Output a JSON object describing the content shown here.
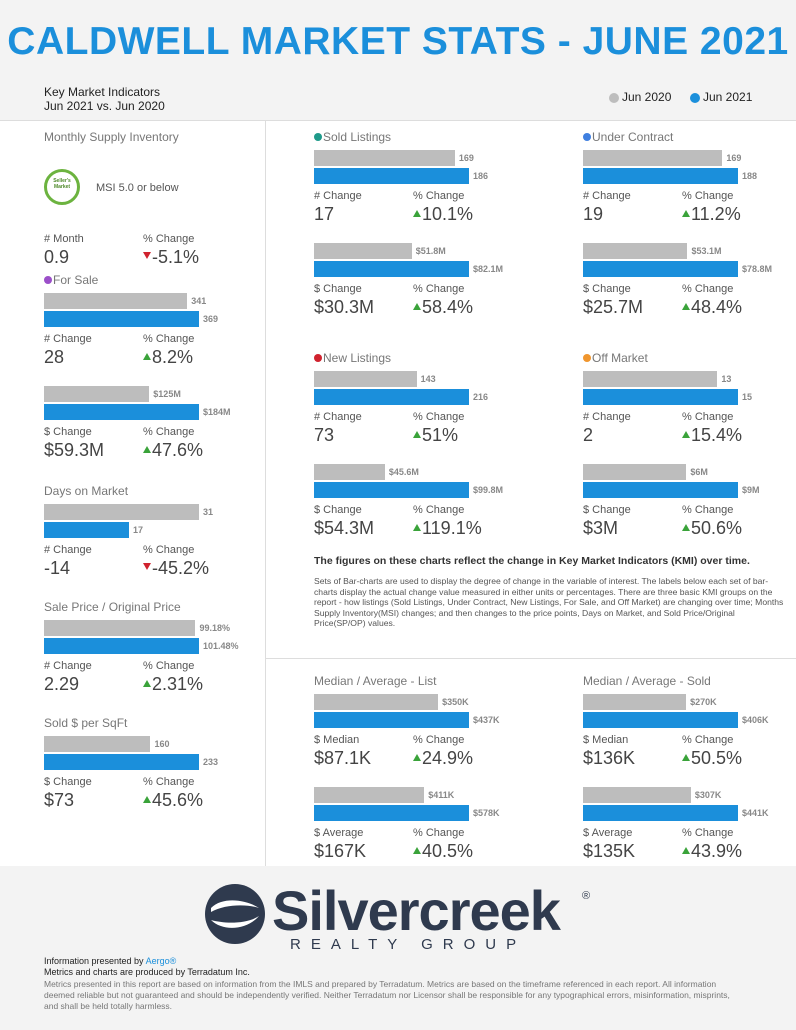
{
  "header": {
    "title": "CALDWELL MARKET STATS - JUNE 2021",
    "subtitle": "Key Market Indicators",
    "period": "Jun 2021 vs. Jun 2020",
    "legend": [
      {
        "name": "Jun 2020",
        "color": "#bdbdbd"
      },
      {
        "name": "Jun 2021",
        "color": "#1b8fdb"
      }
    ]
  },
  "msi": {
    "title": "Monthly Supply Inventory",
    "badge": "Seller's Market",
    "note": "MSI 5.0 or below",
    "stats": [
      {
        "label": "# Month",
        "value": "0.9"
      },
      {
        "label": "% Change",
        "value": "-5.1%",
        "trend": "down"
      }
    ]
  },
  "panels": [
    {
      "title": "For Sale",
      "dot": "#9b4fc9",
      "groups": [
        {
          "values": [
            341,
            369
          ],
          "stats": [
            {
              "label": "# Change",
              "value": "28"
            },
            {
              "label": "% Change",
              "value": "8.2%",
              "trend": "up"
            }
          ]
        },
        {
          "values": [
            125,
            184
          ],
          "value_labels": [
            "$125M",
            "$184M"
          ],
          "stats": [
            {
              "label": "$ Change",
              "value": "$59.3M"
            },
            {
              "label": "% Change",
              "value": "47.6%",
              "trend": "up"
            }
          ]
        }
      ]
    },
    {
      "title": "Days on Market",
      "groups": [
        {
          "values": [
            31,
            17
          ],
          "stats": [
            {
              "label": "# Change",
              "value": "-14"
            },
            {
              "label": "% Change",
              "value": "-45.2%",
              "trend": "down"
            }
          ]
        }
      ]
    },
    {
      "title": "Sale Price / Original Price",
      "groups": [
        {
          "values": [
            99.18,
            101.48
          ],
          "value_labels": [
            "99.18%",
            "101.48%"
          ],
          "stats": [
            {
              "label": "# Change",
              "value": "2.29"
            },
            {
              "label": "% Change",
              "value": "2.31%",
              "trend": "up"
            }
          ]
        }
      ]
    },
    {
      "title": "Sold $ per SqFt",
      "groups": [
        {
          "values": [
            160,
            233
          ],
          "stats": [
            {
              "label": "$ Change",
              "value": "$73"
            },
            {
              "label": "% Change",
              "value": "45.6%",
              "trend": "up"
            }
          ]
        }
      ]
    },
    {
      "title": "Sold Listings",
      "dot": "#1f9a8a",
      "groups": [
        {
          "values": [
            169,
            186
          ],
          "stats": [
            {
              "label": "# Change",
              "value": "17"
            },
            {
              "label": "% Change",
              "value": "10.1%",
              "trend": "up"
            }
          ]
        },
        {
          "values": [
            51.8,
            82.1
          ],
          "value_labels": [
            "$51.8M",
            "$82.1M"
          ],
          "stats": [
            {
              "label": "$ Change",
              "value": "$30.3M"
            },
            {
              "label": "% Change",
              "value": "58.4%",
              "trend": "up"
            }
          ]
        }
      ]
    },
    {
      "title": "Under Contract",
      "dot": "#3f7fe0",
      "groups": [
        {
          "values": [
            169,
            188
          ],
          "stats": [
            {
              "label": "# Change",
              "value": "19"
            },
            {
              "label": "% Change",
              "value": "11.2%",
              "trend": "up"
            }
          ]
        },
        {
          "values": [
            53.1,
            78.8
          ],
          "value_labels": [
            "$53.1M",
            "$78.8M"
          ],
          "stats": [
            {
              "label": "$ Change",
              "value": "$25.7M"
            },
            {
              "label": "% Change",
              "value": "48.4%",
              "trend": "up"
            }
          ]
        }
      ]
    },
    {
      "title": "New Listings",
      "dot": "#d0222e",
      "groups": [
        {
          "values": [
            143,
            216
          ],
          "stats": [
            {
              "label": "# Change",
              "value": "73"
            },
            {
              "label": "% Change",
              "value": "51%",
              "trend": "up"
            }
          ]
        },
        {
          "values": [
            45.6,
            99.8
          ],
          "value_labels": [
            "$45.6M",
            "$99.8M"
          ],
          "stats": [
            {
              "label": "$ Change",
              "value": "$54.3M"
            },
            {
              "label": "% Change",
              "value": "119.1%",
              "trend": "up"
            }
          ]
        }
      ]
    },
    {
      "title": "Off Market",
      "dot": "#f0962e",
      "groups": [
        {
          "values": [
            13,
            15
          ],
          "stats": [
            {
              "label": "# Change",
              "value": "2"
            },
            {
              "label": "% Change",
              "value": "15.4%",
              "trend": "up"
            }
          ]
        },
        {
          "values": [
            6,
            9
          ],
          "value_labels": [
            "$6M",
            "$9M"
          ],
          "stats": [
            {
              "label": "$ Change",
              "value": "$3M"
            },
            {
              "label": "% Change",
              "value": "50.6%",
              "trend": "up"
            }
          ]
        }
      ]
    },
    {
      "title": "Median / Average - List",
      "groups": [
        {
          "values": [
            350,
            437
          ],
          "value_labels": [
            "$350K",
            "$437K"
          ],
          "stats": [
            {
              "label": "$ Median",
              "value": "$87.1K"
            },
            {
              "label": "% Change",
              "value": "24.9%",
              "trend": "up"
            }
          ]
        },
        {
          "values": [
            411,
            578
          ],
          "value_labels": [
            "$411K",
            "$578K"
          ],
          "stats": [
            {
              "label": "$ Average",
              "value": "$167K"
            },
            {
              "label": "% Change",
              "value": "40.5%",
              "trend": "up"
            }
          ]
        }
      ]
    },
    {
      "title": "Median / Average - Sold",
      "groups": [
        {
          "values": [
            270,
            406
          ],
          "value_labels": [
            "$270K",
            "$406K"
          ],
          "stats": [
            {
              "label": "$ Median",
              "value": "$136K"
            },
            {
              "label": "% Change",
              "value": "50.5%",
              "trend": "up"
            }
          ]
        },
        {
          "values": [
            307,
            441
          ],
          "value_labels": [
            "$307K",
            "$441K"
          ],
          "stats": [
            {
              "label": "$ Average",
              "value": "$135K"
            },
            {
              "label": "% Change",
              "value": "43.9%",
              "trend": "up"
            }
          ]
        }
      ]
    }
  ],
  "description": {
    "headline": "The figures on these charts reflect the change in Key Market Indicators (KMI) over time.",
    "body": "Sets of Bar-charts are used to display the degree of change in the variable of interest. The labels below each set of bar-charts display the actual change value measured in either units or percentages. There are three basic KMI groups on the report - how listings (Sold Listings, Under Contract, New Listings, For Sale, and Off Market) are changing over time; Months Supply Inventory(MSI) changes; and then changes to the price points, Days on Market, and Sold Price/Original Price(SP/OP) values."
  },
  "footer": {
    "logo": "Silvercreek",
    "logo_mark": "®",
    "logo_sub": "REALTY GROUP",
    "presented_by": "Information presented by",
    "presenter": "Aergo®",
    "produced_by": "Metrics and charts are produced by Terradatum Inc.",
    "disclaimer": "Metrics presented in this report are based on information from the IMLS and prepared by Terradatum. Metrics are based on the timeframe referenced in each report. All information deemed reliable but not guaranteed and should be independently verified. Neither Terradatum nor Licensor shall be responsible for any typographical errors, misinformation, misprints, and shall be held totally harmless."
  }
}
